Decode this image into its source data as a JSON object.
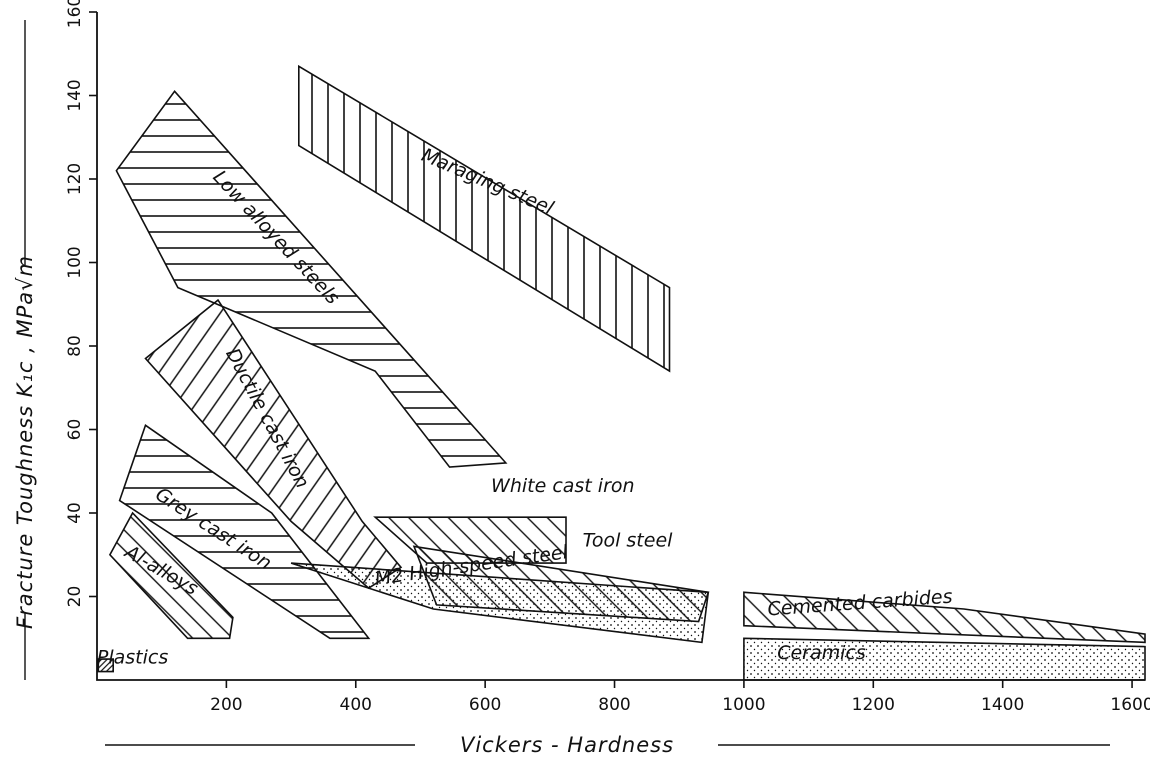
{
  "chart_data": {
    "type": "area",
    "xlabel": "Vickers - Hardness",
    "ylabel": "Fracture Toughness  K₁c , MPa√m",
    "xlim": [
      0,
      1620
    ],
    "ylim": [
      0,
      160
    ],
    "x_ticks": [
      {
        "value": 200,
        "label": "200"
      },
      {
        "value": 400,
        "label": "400"
      },
      {
        "value": 600,
        "label": "600"
      },
      {
        "value": 800,
        "label": "800"
      },
      {
        "value": 1000,
        "label": "1000"
      },
      {
        "value": 1200,
        "label": "1200"
      },
      {
        "value": 1400,
        "label": "1400"
      },
      {
        "value": 1600,
        "label": "1600"
      }
    ],
    "y_ticks": [
      {
        "value": 20,
        "label": "20"
      },
      {
        "value": 40,
        "label": "40"
      },
      {
        "value": 60,
        "label": "60"
      },
      {
        "value": 80,
        "label": "80"
      },
      {
        "value": 100,
        "label": "100"
      },
      {
        "value": 120,
        "label": "120"
      },
      {
        "value": 140,
        "label": "140"
      },
      {
        "value": 160,
        "label": "160"
      }
    ],
    "grid": false,
    "legend": "none",
    "regions": [
      {
        "name": "Maraging steel",
        "hatch": "vertical",
        "polygon": [
          [
            312,
            128
          ],
          [
            312,
            147
          ],
          [
            885,
            94
          ],
          [
            885,
            74
          ]
        ],
        "label_at": [
          600,
          118
        ],
        "label_angle": 23
      },
      {
        "name": "Low alloyed steels",
        "hatch": "horizontal",
        "polygon": [
          [
            30,
            122
          ],
          [
            120,
            141
          ],
          [
            632,
            52
          ],
          [
            545,
            51
          ],
          [
            430,
            74
          ],
          [
            125,
            94
          ]
        ],
        "label_at": [
          270,
          105
        ],
        "label_angle": 47
      },
      {
        "name": "Ductile cast iron",
        "hatch": "diagonal-up",
        "polygon": [
          [
            75,
            77
          ],
          [
            187,
            91
          ],
          [
            410,
            38
          ],
          [
            470,
            27
          ],
          [
            420,
            22
          ],
          [
            300,
            38
          ]
        ],
        "label_at": [
          255,
          62
        ],
        "label_angle": 62
      },
      {
        "name": "Grey cast iron",
        "hatch": "horizontal",
        "polygon": [
          [
            75,
            61
          ],
          [
            35,
            43
          ],
          [
            360,
            10
          ],
          [
            420,
            10
          ],
          [
            270,
            40
          ]
        ],
        "label_at": [
          175,
          35
        ],
        "label_angle": 33
      },
      {
        "name": "Al-alloys",
        "hatch": "diagonal-down",
        "polygon": [
          [
            20,
            30
          ],
          [
            55,
            40
          ],
          [
            210,
            15
          ],
          [
            205,
            10
          ],
          [
            140,
            10
          ]
        ],
        "label_at": [
          95,
          25
        ],
        "label_angle": 30
      },
      {
        "name": "Plastics",
        "hatch": "dense",
        "polygon": [
          [
            2,
            2
          ],
          [
            25,
            2
          ],
          [
            25,
            5
          ],
          [
            2,
            5
          ]
        ],
        "label_at": [
          55,
          4
        ],
        "label_angle": 0
      },
      {
        "name": "White cast iron",
        "hatch": "diagonal-down",
        "polygon": [
          [
            430,
            39
          ],
          [
            725,
            39
          ],
          [
            725,
            28
          ],
          [
            510,
            28
          ]
        ],
        "label_at": [
          720,
          45
        ],
        "label_angle": 0
      },
      {
        "name": "Tool steel",
        "hatch": "diagonal-down",
        "polygon": [
          [
            490,
            32
          ],
          [
            945,
            21
          ],
          [
            930,
            14
          ],
          [
            525,
            18
          ]
        ],
        "label_at": [
          820,
          32
        ],
        "label_angle": 0
      },
      {
        "name": "M2 High-speed steel",
        "hatch": "dotted",
        "polygon": [
          [
            300,
            28
          ],
          [
            945,
            21
          ],
          [
            935,
            9
          ],
          [
            520,
            17
          ]
        ],
        "label_at": [
          580,
          26
        ],
        "label_angle": -8
      },
      {
        "name": "Cemented carbides",
        "hatch": "diagonal-down",
        "polygon": [
          [
            1000,
            21
          ],
          [
            1000,
            13
          ],
          [
            1620,
            9
          ],
          [
            1620,
            11
          ],
          [
            1340,
            17
          ]
        ],
        "label_at": [
          1180,
          17
        ],
        "label_angle": -4
      },
      {
        "name": "Ceramics",
        "hatch": "dotted",
        "polygon": [
          [
            1000,
            10
          ],
          [
            1000,
            0
          ],
          [
            1620,
            0
          ],
          [
            1620,
            8
          ]
        ],
        "label_at": [
          1120,
          5
        ],
        "label_angle": 0
      }
    ]
  }
}
